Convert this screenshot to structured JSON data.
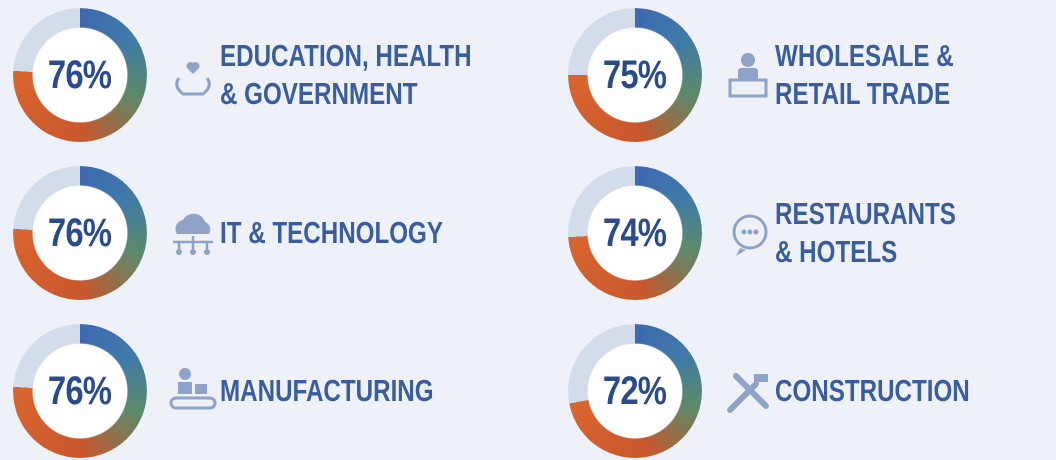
{
  "chart_data": [
    {
      "type": "donut",
      "categories": [
        "EDUCATION, HEALTH & GOVERNMENT"
      ],
      "values": [
        76
      ],
      "value_labels": [
        "76%"
      ]
    },
    {
      "type": "donut",
      "categories": [
        "WHOLESALE & RETAIL TRADE"
      ],
      "values": [
        75
      ],
      "value_labels": [
        "75%"
      ]
    },
    {
      "type": "donut",
      "categories": [
        "IT & TECHNOLOGY"
      ],
      "values": [
        76
      ],
      "value_labels": [
        "76%"
      ]
    },
    {
      "type": "donut",
      "categories": [
        "RESTAURANTS & HOTELS"
      ],
      "values": [
        74
      ],
      "value_labels": [
        "74%"
      ]
    },
    {
      "type": "donut",
      "categories": [
        "MANUFACTURING"
      ],
      "values": [
        76
      ],
      "value_labels": [
        "76%"
      ]
    },
    {
      "type": "donut",
      "categories": [
        "CONSTRUCTION"
      ],
      "values": [
        72
      ],
      "value_labels": [
        "72%"
      ]
    }
  ]
}
